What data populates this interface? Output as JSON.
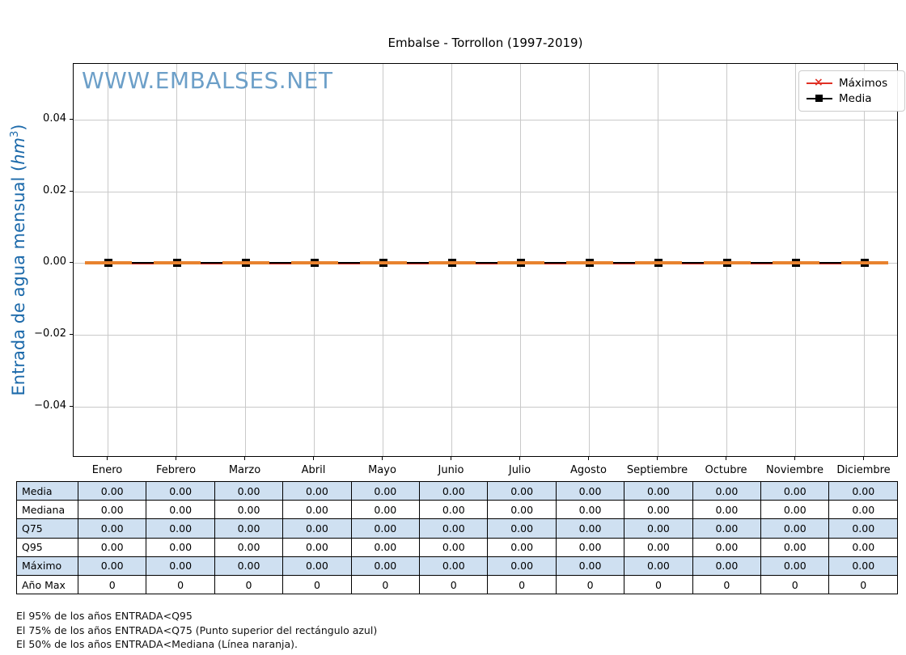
{
  "title": "Embalse - Torrollon (1997-2019)",
  "watermark": "WWW.EMBALSES.NET",
  "colors": {
    "ylabel_blue": "#1b69aa",
    "watermark_blue": "#6c9fc8",
    "median_orange": "#e8822e",
    "maximos_red": "#e03024",
    "media_black": "#000000",
    "table_row_blue": "#cfe0f1",
    "grid_gray": "#c9c9c9"
  },
  "chart_data": {
    "type": "line",
    "title": "Embalse - Torrollon (1997-2019)",
    "categories": [
      "Enero",
      "Febrero",
      "Marzo",
      "Abril",
      "Mayo",
      "Junio",
      "Julio",
      "Agosto",
      "Septiembre",
      "Octubre",
      "Noviembre",
      "Diciembre"
    ],
    "series": [
      {
        "name": "Máximos",
        "color": "#e03024",
        "marker": "x",
        "values": [
          0,
          0,
          0,
          0,
          0,
          0,
          0,
          0,
          0,
          0,
          0,
          0
        ]
      },
      {
        "name": "Media",
        "color": "#000000",
        "marker": "square",
        "values": [
          0,
          0,
          0,
          0,
          0,
          0,
          0,
          0,
          0,
          0,
          0,
          0
        ]
      },
      {
        "name": "Mediana",
        "color": "#e8822e",
        "marker": "none",
        "values": [
          0,
          0,
          0,
          0,
          0,
          0,
          0,
          0,
          0,
          0,
          0,
          0
        ]
      }
    ],
    "xlabel": "",
    "ylabel": "Entrada de agua mensual (hm³)",
    "ytick_labels": [
      "0.04",
      "0.02",
      "0.00",
      "−0.02",
      "−0.04"
    ],
    "ytick_values": [
      0.04,
      0.02,
      0.0,
      -0.02,
      -0.04
    ],
    "ylim": [
      -0.055,
      0.055
    ],
    "grid": true,
    "legend_position": "upper right"
  },
  "ylabel_parts": {
    "prefix": "Entrada de agua mensual (",
    "unit": "hm",
    "exp": "3",
    "suffix": ")"
  },
  "legend": {
    "items": [
      {
        "label": "Máximos",
        "marker": "x",
        "color": "#e03024"
      },
      {
        "label": "Media",
        "marker": "square",
        "color": "#000000"
      }
    ]
  },
  "table": {
    "rows": [
      {
        "label": "Media",
        "highlight": true,
        "values": [
          "0.00",
          "0.00",
          "0.00",
          "0.00",
          "0.00",
          "0.00",
          "0.00",
          "0.00",
          "0.00",
          "0.00",
          "0.00",
          "0.00"
        ]
      },
      {
        "label": "Mediana",
        "highlight": false,
        "values": [
          "0.00",
          "0.00",
          "0.00",
          "0.00",
          "0.00",
          "0.00",
          "0.00",
          "0.00",
          "0.00",
          "0.00",
          "0.00",
          "0.00"
        ]
      },
      {
        "label": "Q75",
        "highlight": true,
        "values": [
          "0.00",
          "0.00",
          "0.00",
          "0.00",
          "0.00",
          "0.00",
          "0.00",
          "0.00",
          "0.00",
          "0.00",
          "0.00",
          "0.00"
        ]
      },
      {
        "label": "Q95",
        "highlight": false,
        "values": [
          "0.00",
          "0.00",
          "0.00",
          "0.00",
          "0.00",
          "0.00",
          "0.00",
          "0.00",
          "0.00",
          "0.00",
          "0.00",
          "0.00"
        ]
      },
      {
        "label": "Máximo",
        "highlight": true,
        "values": [
          "0.00",
          "0.00",
          "0.00",
          "0.00",
          "0.00",
          "0.00",
          "0.00",
          "0.00",
          "0.00",
          "0.00",
          "0.00",
          "0.00"
        ]
      },
      {
        "label": "Año Max",
        "highlight": false,
        "values": [
          "0",
          "0",
          "0",
          "0",
          "0",
          "0",
          "0",
          "0",
          "0",
          "0",
          "0",
          "0"
        ]
      }
    ]
  },
  "footnotes": [
    "El 95% de los años ENTRADA<Q95",
    "El 75% de los años ENTRADA<Q75 (Punto superior del rectángulo azul)",
    "El 50% de los años ENTRADA<Mediana (Línea naranja)."
  ]
}
